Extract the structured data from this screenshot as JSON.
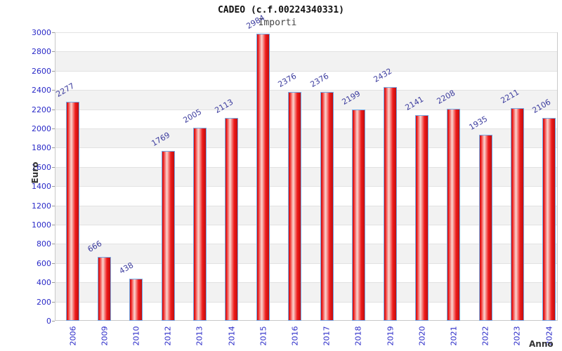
{
  "chart_data": {
    "type": "bar",
    "title": "CADEO (c.f.00224340331)",
    "subtitle": "Importi",
    "xlabel": "Anno",
    "ylabel": "Euro",
    "categories": [
      "2006",
      "2009",
      "2010",
      "2012",
      "2013",
      "2014",
      "2015",
      "2016",
      "2017",
      "2018",
      "2019",
      "2020",
      "2021",
      "2022",
      "2023",
      "2024"
    ],
    "values": [
      2277,
      666,
      438,
      1769,
      2005,
      2113,
      2984,
      2376,
      2376,
      2199,
      2432,
      2141,
      2208,
      1935,
      2211,
      2106
    ],
    "ylim": [
      0,
      3000
    ],
    "ytick_step": 200,
    "grid": "horizontal-bands",
    "legend": "none",
    "colors": {
      "tick_label": "#2a2ac8",
      "value_label": "#3c3c9e",
      "axis_title": "#333333",
      "band_gray": "#f2f2f2",
      "gridline": "#e2e2e2",
      "frame": "#c9c9c9",
      "bar_border": "#74aae6",
      "bar_red_dark": "#c00e0e",
      "bar_red_main": "#ee1a1a",
      "bar_highlight": "#fbd6d0"
    }
  }
}
